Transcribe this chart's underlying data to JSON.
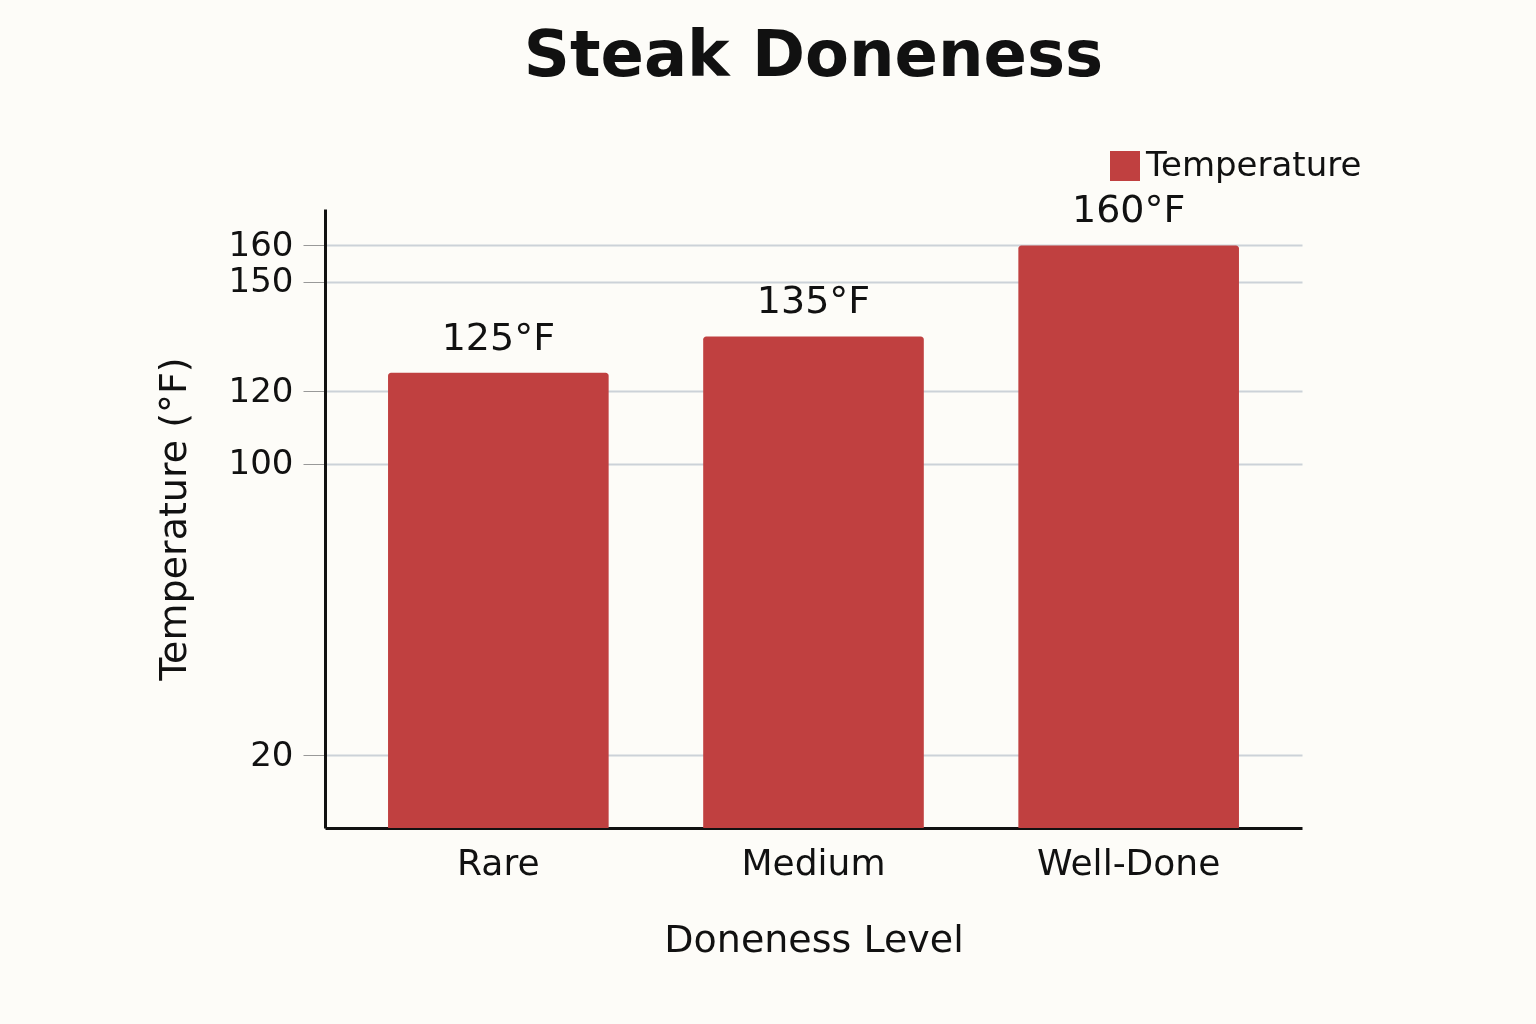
{
  "chart_data": {
    "type": "bar",
    "title": "Steak Doneness",
    "xlabel": "Doneness Level",
    "ylabel": "Temperature (°F)",
    "categories": [
      "Rare",
      "Medium",
      "Well-Done"
    ],
    "series": [
      {
        "name": "Temperature",
        "color": "#c04040",
        "values": [
          125,
          135,
          160
        ],
        "value_labels": [
          "125°F",
          "135°F",
          "160°F"
        ]
      }
    ],
    "ylim": [
      0,
      170
    ],
    "yticks": [
      20,
      100,
      120,
      150,
      160
    ],
    "grid": "y",
    "legend": "top right"
  }
}
